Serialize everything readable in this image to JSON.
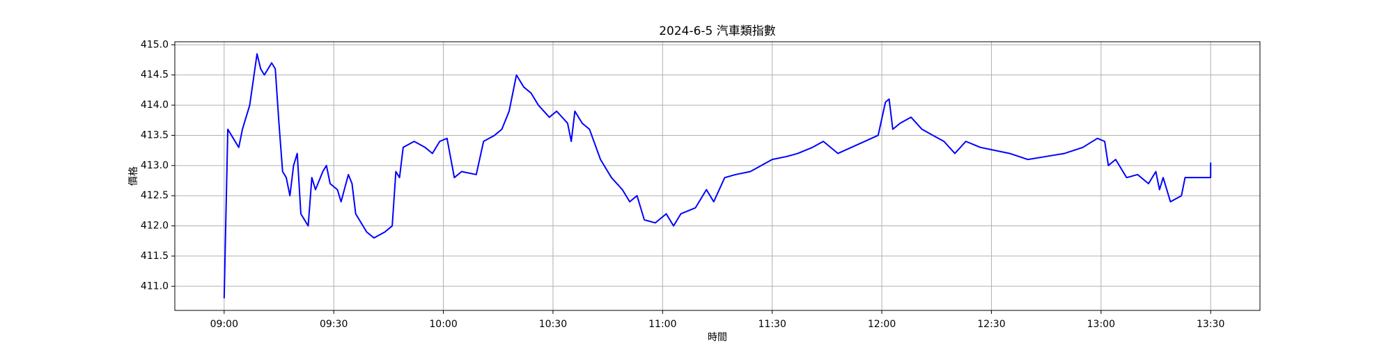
{
  "chart_data": {
    "type": "line",
    "title": "2024-6-5 汽車類指數",
    "x_label": "時間",
    "y_label": "價格",
    "grid": true,
    "xlim": [
      "08:46:30",
      "13:43:30"
    ],
    "xticks": [
      "09:00",
      "09:30",
      "10:00",
      "10:30",
      "11:00",
      "11:30",
      "12:00",
      "12:30",
      "13:00",
      "13:30"
    ],
    "ylim": [
      410.6,
      415.05
    ],
    "yticks": [
      {
        "value": 411,
        "label": "411.0"
      },
      {
        "value": 411.5,
        "label": "411.5"
      },
      {
        "value": 412,
        "label": "412.0"
      },
      {
        "value": 412.5,
        "label": "412.5"
      },
      {
        "value": 413,
        "label": "413.0"
      },
      {
        "value": 413.5,
        "label": "413.5"
      },
      {
        "value": 414,
        "label": "414.0"
      },
      {
        "value": 414.5,
        "label": "414.5"
      },
      {
        "value": 415,
        "label": "415.0"
      }
    ],
    "x": [
      "09:00",
      "09:01",
      "09:02",
      "09:04",
      "09:05",
      "09:07",
      "09:09",
      "09:10",
      "09:11",
      "09:13",
      "09:14",
      "09:15",
      "09:16",
      "09:17",
      "09:18",
      "09:19",
      "09:20",
      "09:21",
      "09:23",
      "09:24",
      "09:25",
      "09:27",
      "09:28",
      "09:29",
      "09:31",
      "09:32",
      "09:34",
      "09:35",
      "09:36",
      "09:37",
      "09:39",
      "09:41",
      "09:44",
      "09:46",
      "09:47",
      "09:48",
      "09:49",
      "09:52",
      "09:55",
      "09:57",
      "09:59",
      "10:01",
      "10:03",
      "10:05",
      "10:09",
      "10:11",
      "10:14",
      "10:16",
      "10:18",
      "10:20",
      "10:22",
      "10:24",
      "10:26",
      "10:29",
      "10:31",
      "10:34",
      "10:35",
      "10:36",
      "10:38",
      "10:40",
      "10:43",
      "10:46",
      "10:49",
      "10:51",
      "10:53",
      "10:55",
      "10:58",
      "11:01",
      "11:03",
      "11:05",
      "11:09",
      "11:12",
      "11:14",
      "11:17",
      "11:20",
      "11:24",
      "11:27",
      "11:30",
      "11:34",
      "11:37",
      "11:41",
      "11:44",
      "11:48",
      "11:59",
      "12:01",
      "12:02",
      "12:03",
      "12:05",
      "12:08",
      "12:11",
      "12:14",
      "12:17",
      "12:20",
      "12:23",
      "12:27",
      "12:31",
      "12:35",
      "12:40",
      "12:45",
      "12:50",
      "12:55",
      "12:59",
      "13:01",
      "13:02",
      "13:04",
      "13:07",
      "13:10",
      "13:13",
      "13:15",
      "13:16",
      "13:17",
      "13:19",
      "13:22",
      "13:23",
      "13:30",
      "13:30"
    ],
    "series": [
      {
        "color": "#0000ff",
        "values": [
          410.8,
          413.6,
          413.5,
          413.3,
          413.6,
          414.0,
          414.85,
          414.6,
          414.5,
          414.7,
          414.6,
          413.7,
          412.9,
          412.8,
          412.5,
          413.0,
          413.2,
          412.2,
          412.0,
          412.8,
          412.6,
          412.9,
          413.0,
          412.7,
          412.6,
          412.4,
          412.85,
          412.7,
          412.2,
          412.1,
          411.9,
          411.8,
          411.9,
          412.0,
          412.9,
          412.8,
          413.3,
          413.4,
          413.3,
          413.2,
          413.4,
          413.45,
          412.8,
          412.9,
          412.85,
          413.4,
          413.5,
          413.6,
          413.9,
          414.5,
          414.3,
          414.2,
          414.0,
          413.8,
          413.9,
          413.7,
          413.4,
          413.9,
          413.7,
          413.6,
          413.1,
          412.8,
          412.6,
          412.4,
          412.5,
          412.1,
          412.05,
          412.2,
          412.0,
          412.2,
          412.3,
          412.6,
          412.4,
          412.8,
          412.85,
          412.9,
          413.0,
          413.1,
          413.15,
          413.2,
          413.3,
          413.4,
          413.2,
          413.5,
          414.05,
          414.1,
          413.6,
          413.7,
          413.8,
          413.6,
          413.5,
          413.4,
          413.2,
          413.4,
          413.3,
          413.25,
          413.2,
          413.1,
          413.15,
          413.2,
          413.3,
          413.45,
          413.4,
          413.0,
          413.1,
          412.8,
          412.85,
          412.7,
          412.9,
          412.6,
          412.8,
          412.4,
          412.5,
          412.8,
          412.8,
          413.05
        ]
      }
    ]
  }
}
